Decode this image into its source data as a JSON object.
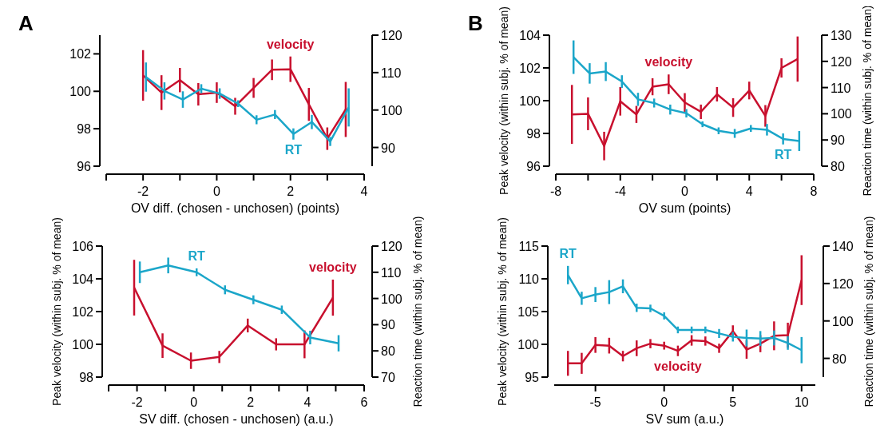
{
  "chart_data": [
    {
      "type": "line",
      "title": "A",
      "xlabel": "OV diff. (chosen - unchosen) (points)",
      "xlim": [
        -3,
        4
      ],
      "xticks": [
        {
          "value": -3,
          "label": null
        },
        -2,
        {
          "value": -1,
          "label": null
        },
        0,
        {
          "value": 1,
          "label": null
        },
        2,
        {
          "value": 3,
          "label": null
        },
        4
      ],
      "ylim": [
        96,
        103
      ],
      "yticks": [
        96,
        98,
        100,
        102
      ],
      "y2lim": [
        85,
        120
      ],
      "y2ticks": [
        90,
        100,
        110,
        120
      ],
      "grid": false,
      "marker": "none",
      "line_style": "solid",
      "series": [
        {
          "name": "velocity",
          "color": "#c8102e",
          "x": [
            -2,
            -1.5,
            -1,
            -0.5,
            0,
            0.5,
            1,
            1.5,
            2,
            2.5,
            3,
            3.5
          ],
          "values": [
            100.85,
            99.93,
            100.6,
            99.84,
            99.93,
            99.2,
            100.18,
            101.15,
            101.18,
            99.3,
            97.47,
            99.03
          ],
          "errors": [
            1.35,
            0.93,
            0.65,
            0.6,
            0.55,
            0.45,
            0.53,
            0.55,
            0.68,
            0.88,
            0.6,
            1.47
          ]
        },
        {
          "name": "RT",
          "color": "#1ba6c9",
          "axis": "y2",
          "x": [
            -1.92,
            -1.42,
            -0.92,
            -0.42,
            0.08,
            0.58,
            1.08,
            1.58,
            2.08,
            2.58,
            3.08,
            3.58
          ],
          "values": [
            108.8,
            105.1,
            102.8,
            105.7,
            104.4,
            101.7,
            97.4,
            98.8,
            93.6,
            96.8,
            91.6,
            100.7
          ],
          "errors": [
            3.9,
            2.3,
            2.2,
            1.2,
            1.4,
            0.9,
            1.2,
            1.2,
            1.5,
            1.9,
            1.2,
            5.1
          ]
        }
      ]
    },
    {
      "type": "line",
      "title": "B",
      "xlabel": "OV sum (points)",
      "ylabel": "Peak velocity (within subj. % of mean)",
      "y2label": "Reaction time (within subj. % of mean)",
      "xlim": [
        -8,
        8
      ],
      "xticks": [
        -8,
        {
          "value": -6,
          "label": null
        },
        -4,
        {
          "value": -2,
          "label": null
        },
        0,
        {
          "value": 2,
          "label": null
        },
        4,
        {
          "value": 6,
          "label": null
        },
        8
      ],
      "ylim": [
        96,
        104
      ],
      "yticks": [
        96,
        98,
        100,
        102,
        104
      ],
      "y2lim": [
        80,
        130
      ],
      "y2ticks": [
        80,
        90,
        100,
        110,
        120,
        130
      ],
      "grid": false,
      "marker": "none",
      "line_style": "solid",
      "series": [
        {
          "name": "velocity",
          "color": "#c8102e",
          "x": [
            -7,
            -6,
            -5,
            -4,
            -3,
            -2,
            -1,
            0,
            1,
            2,
            3,
            4,
            5,
            6,
            7
          ],
          "values": [
            99.16,
            99.2,
            97.23,
            99.96,
            99.16,
            100.85,
            101.0,
            99.89,
            99.32,
            100.39,
            99.58,
            100.62,
            99.07,
            102.0,
            102.54
          ],
          "errors": [
            1.8,
            1.0,
            0.87,
            0.87,
            0.52,
            0.52,
            0.6,
            0.57,
            0.44,
            0.44,
            0.57,
            0.54,
            0.66,
            0.59,
            1.38
          ]
        },
        {
          "name": "RT",
          "color": "#1ba6c9",
          "axis": "y2",
          "x": [
            -6.9,
            -5.9,
            -4.9,
            -3.9,
            -2.9,
            -1.9,
            -0.9,
            0.1,
            1.1,
            2.1,
            3.1,
            4.1,
            5.1,
            6.1,
            7.1
          ],
          "values": [
            121.6,
            115.4,
            116.1,
            112.3,
            105.5,
            104.1,
            101.6,
            100.2,
            96.0,
            93.5,
            92.5,
            94.4,
            93.9,
            90.4,
            89.6
          ],
          "errors": [
            6.4,
            3.9,
            3.6,
            2.4,
            2.5,
            1.7,
            1.9,
            1.6,
            1.1,
            1.3,
            1.7,
            1.3,
            2.2,
            2.1,
            3.8
          ]
        }
      ]
    },
    {
      "type": "line",
      "xlabel": "SV diff. (chosen - unchosen) (a.u.)",
      "ylabel": "Peak velocity (within subj. % of mean)",
      "y2label": "Reaction time (within subj. % of mean)",
      "xlim": [
        -3,
        6
      ],
      "xticks": [
        {
          "value": -3,
          "label": null
        },
        -2,
        {
          "value": -1,
          "label": null
        },
        0,
        {
          "value": 1,
          "label": null
        },
        2,
        {
          "value": 3,
          "label": null
        },
        4,
        {
          "value": 5,
          "label": null
        },
        6
      ],
      "ylim": [
        98,
        106
      ],
      "yticks": [
        98,
        100,
        102,
        104,
        106
      ],
      "y2lim": [
        70,
        120
      ],
      "y2ticks": [
        70,
        80,
        90,
        100,
        110,
        120
      ],
      "grid": false,
      "marker": "none",
      "line_style": "solid",
      "series": [
        {
          "name": "velocity",
          "color": "#c8102e",
          "x": [
            -2.1,
            -1.1,
            -0.1,
            0.9,
            1.9,
            2.9,
            3.9,
            4.9
          ],
          "values": [
            103.46,
            99.92,
            99.0,
            99.23,
            101.15,
            100.0,
            100.0,
            102.85
          ],
          "errors": [
            1.7,
            0.75,
            0.5,
            0.37,
            0.42,
            0.37,
            0.85,
            1.1
          ]
        },
        {
          "name": "RT",
          "color": "#1ba6c9",
          "axis": "y2",
          "x": [
            -1.9,
            -0.9,
            0.1,
            1.1,
            2.1,
            3.1,
            4.1,
            5.1
          ],
          "values": [
            110.0,
            112.6,
            110.0,
            103.3,
            99.5,
            95.7,
            85.1,
            82.9
          ],
          "errors": [
            4.1,
            3.0,
            1.5,
            1.7,
            1.7,
            1.6,
            2.6,
            3.1
          ]
        }
      ]
    },
    {
      "type": "line",
      "xlabel": "SV sum (a.u.)",
      "ylabel": "Peak velocity (within subj. % of mean)",
      "y2label": "Reaction time (within subj. % of mean)",
      "xlim": [
        -8,
        11
      ],
      "xticks": [
        -5,
        0,
        5,
        10
      ],
      "ylim": [
        95,
        115
      ],
      "yticks": [
        95,
        100,
        105,
        110,
        115
      ],
      "y2lim": [
        70,
        140
      ],
      "y2ticks": [
        80,
        100,
        120,
        140
      ],
      "grid": false,
      "marker": "none",
      "line_style": "solid",
      "series": [
        {
          "name": "velocity",
          "color": "#c8102e",
          "x": [
            -7,
            -6,
            -5,
            -4,
            -3,
            -2,
            -1,
            0,
            1,
            2,
            3,
            4,
            5,
            6,
            7,
            8,
            9,
            10
          ],
          "values": [
            97.1,
            97.1,
            99.9,
            99.8,
            98.2,
            99.4,
            100.1,
            99.8,
            99.0,
            100.6,
            100.5,
            99.4,
            102.0,
            99.2,
            100.1,
            101.3,
            101.4,
            109.8
          ],
          "errors": [
            1.9,
            1.6,
            1.2,
            1.2,
            0.8,
            1.2,
            0.7,
            0.6,
            0.8,
            0.8,
            0.7,
            0.7,
            0.9,
            1.4,
            1.3,
            2.2,
            1.9,
            3.8
          ]
        },
        {
          "name": "RT",
          "color": "#1ba6c9",
          "axis": "y2",
          "x": [
            -7,
            -6,
            -5,
            -4,
            -3,
            -2,
            -1,
            0,
            1,
            2,
            3,
            4,
            5,
            6,
            7,
            8,
            9,
            10
          ],
          "values": [
            124.5,
            112.1,
            114.1,
            115.4,
            118.5,
            107.0,
            106.7,
            102.7,
            95.2,
            95.2,
            95.2,
            93.3,
            91.5,
            90.9,
            90.6,
            90.9,
            88.2,
            84.4
          ],
          "errors": [
            4.9,
            3.5,
            4.0,
            6.4,
            3.7,
            2.2,
            2.0,
            1.9,
            1.8,
            1.8,
            1.8,
            2.4,
            2.5,
            4.5,
            4.0,
            4.0,
            3.6,
            7.0
          ]
        }
      ]
    }
  ]
}
